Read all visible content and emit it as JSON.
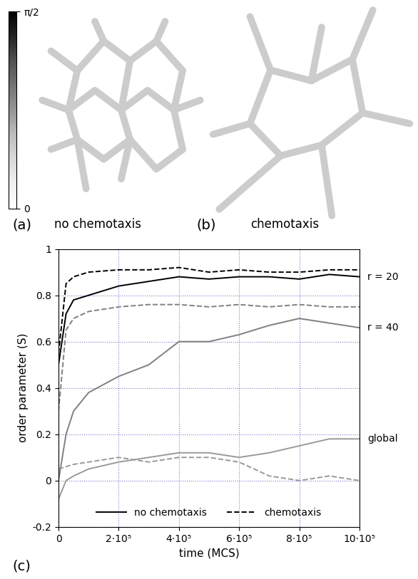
{
  "panels": [
    {
      "label": "(a)",
      "caption": "no chemotaxis"
    },
    {
      "label": "(b)",
      "caption": "chemotaxis"
    }
  ],
  "colorbar": {
    "range": [
      0,
      1.5708
    ],
    "ticks": [
      0,
      {
        "value": 1.5708,
        "label": "π/2"
      }
    ]
  },
  "chart_data": {
    "type": "line",
    "panel_label": "(c)",
    "xlabel": "time (MCS)",
    "ylabel": "order parameter (S)",
    "xlim": [
      0,
      1000000
    ],
    "ylim": [
      -0.2,
      1
    ],
    "xticks": [
      0,
      {
        "value": 200000,
        "label": "2·10⁵"
      },
      {
        "value": 400000,
        "label": "4·10⁵"
      },
      {
        "value": 600000,
        "label": "6·10⁵"
      },
      {
        "value": 800000,
        "label": "8·10⁵"
      },
      {
        "value": 1000000,
        "label": "10·10⁵"
      }
    ],
    "yticks": [
      -0.2,
      0,
      0.2,
      0.4,
      0.6,
      0.8,
      1
    ],
    "grid": true,
    "legend": "lower center",
    "x": [
      0,
      25000,
      50000,
      100000,
      200000,
      300000,
      400000,
      500000,
      600000,
      700000,
      800000,
      900000,
      1000000
    ],
    "series": [
      {
        "name": "no chemotaxis",
        "group": "r = 20",
        "color": "#000000",
        "line_style": "solid",
        "values": [
          0.5,
          0.72,
          0.78,
          0.8,
          0.84,
          0.86,
          0.88,
          0.87,
          0.88,
          0.88,
          0.87,
          0.89,
          0.88
        ]
      },
      {
        "name": "chemotaxis",
        "group": "r = 20",
        "color": "#000000",
        "line_style": "dashed",
        "values": [
          0.55,
          0.85,
          0.88,
          0.9,
          0.91,
          0.91,
          0.92,
          0.9,
          0.91,
          0.9,
          0.9,
          0.91,
          0.91
        ]
      },
      {
        "name": "no chemotaxis",
        "group": "r = 40",
        "color": "#808080",
        "line_style": "solid",
        "values": [
          0.0,
          0.2,
          0.3,
          0.38,
          0.45,
          0.5,
          0.6,
          0.6,
          0.63,
          0.67,
          0.7,
          0.68,
          0.66
        ]
      },
      {
        "name": "chemotaxis",
        "group": "r = 40",
        "color": "#808080",
        "line_style": "dashed",
        "values": [
          0.3,
          0.65,
          0.7,
          0.73,
          0.75,
          0.76,
          0.76,
          0.75,
          0.76,
          0.75,
          0.76,
          0.75,
          0.75
        ]
      },
      {
        "name": "no chemotaxis",
        "group": "global",
        "color": "#999999",
        "line_style": "solid",
        "values": [
          -0.08,
          0.0,
          0.02,
          0.05,
          0.08,
          0.1,
          0.12,
          0.12,
          0.1,
          0.12,
          0.15,
          0.18,
          0.18
        ]
      },
      {
        "name": "chemotaxis",
        "group": "global",
        "color": "#999999",
        "line_style": "dashed",
        "values": [
          0.05,
          0.06,
          0.07,
          0.08,
          0.1,
          0.08,
          0.1,
          0.1,
          0.08,
          0.02,
          0.0,
          0.02,
          0.0
        ]
      }
    ]
  }
}
